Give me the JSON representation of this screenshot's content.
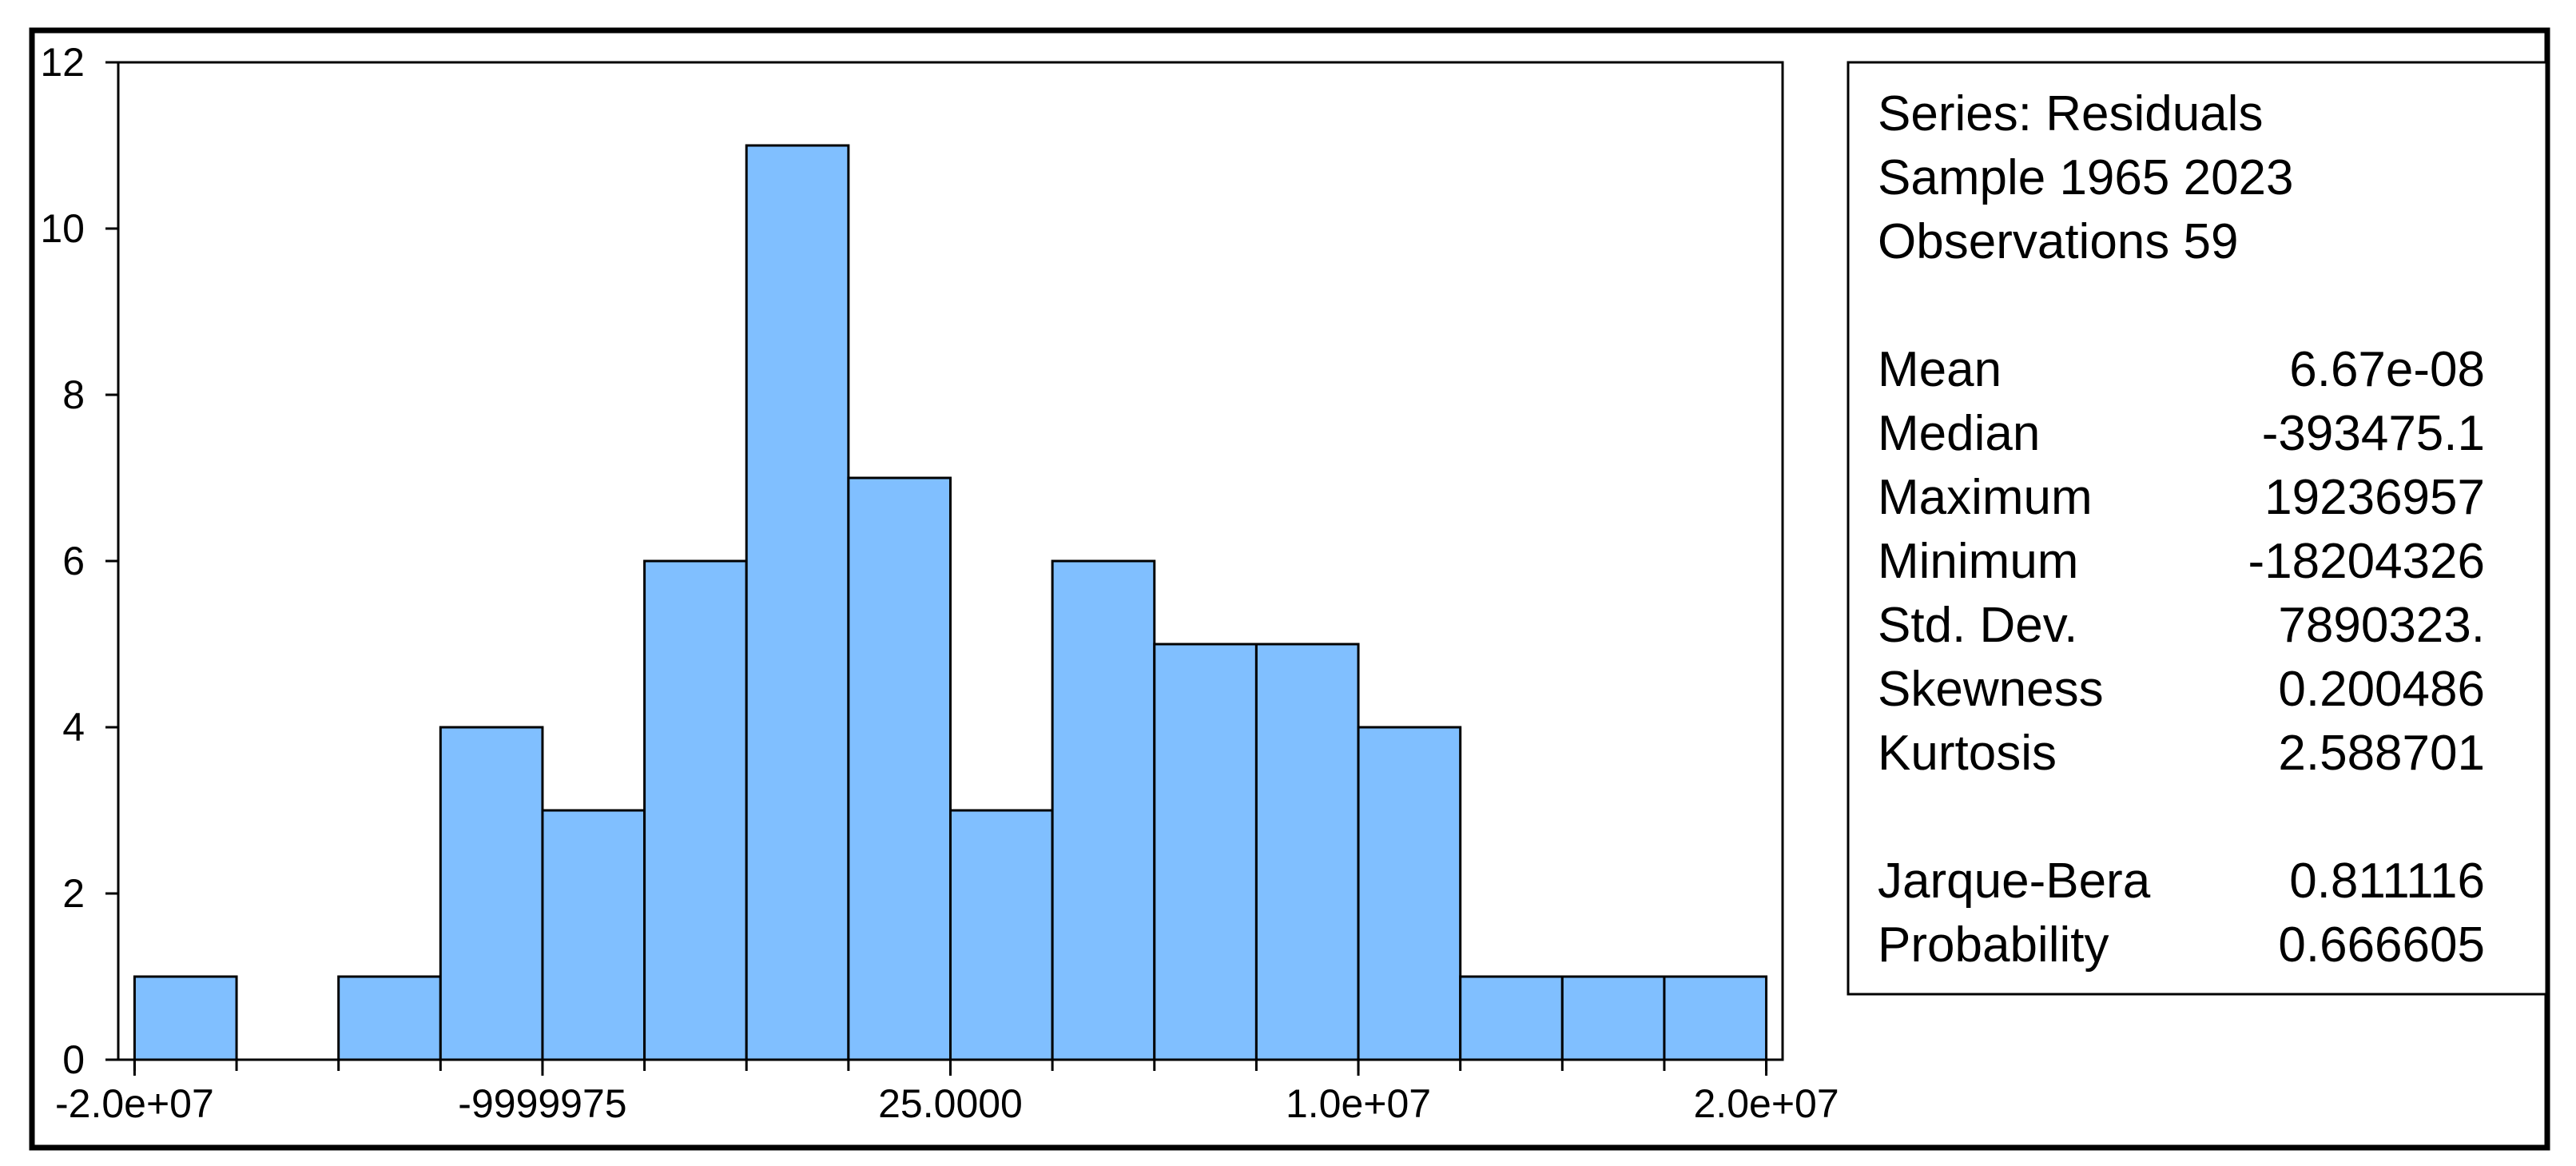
{
  "chart_data": {
    "type": "histogram",
    "bins": [
      -20000000,
      -17500000,
      -15000000,
      -12500000,
      -10000000,
      -7500000,
      -5000000,
      -2500000,
      0,
      2500000,
      5000000,
      7500000,
      10000000,
      12500000,
      15000000,
      17500000,
      20000000
    ],
    "counts": [
      1,
      0,
      1,
      4,
      3,
      6,
      11,
      7,
      3,
      6,
      5,
      5,
      4,
      1,
      1,
      1
    ],
    "color": "#80bfff",
    "xlim": [
      -20400000,
      20400000
    ],
    "xticks": [
      {
        "value": -20000000,
        "label": "-2.0e+07"
      },
      -9999975,
      {
        "value": 25,
        "label": "25.0000"
      },
      {
        "value": 10000000,
        "label": "1.0e+07"
      },
      {
        "value": 20000000,
        "label": "2.0e+07"
      }
    ],
    "ylim": [
      0,
      12
    ],
    "yticks": [
      0,
      2,
      4,
      6,
      8,
      10,
      12
    ],
    "grid": false,
    "stats_box": {
      "header": [
        "Series: Residuals",
        "Sample 1965 2023",
        "Observations 59"
      ],
      "stats": [
        {
          "label": "Mean",
          "value": "6.67e-08"
        },
        {
          "label": "Median",
          "value": "-393475.1"
        },
        {
          "label": "Maximum",
          "value": "19236957"
        },
        {
          "label": "Minimum",
          "value": "-18204326"
        },
        {
          "label": "Std. Dev.",
          "value": "7890323."
        },
        {
          "label": "Skewness",
          "value": "0.200486"
        },
        {
          "label": "Kurtosis",
          "value": "2.588701"
        }
      ],
      "tests": [
        {
          "label": "Jarque-Bera",
          "value": "0.811116"
        },
        {
          "label": "Probability",
          "value": "0.666605"
        }
      ]
    }
  }
}
